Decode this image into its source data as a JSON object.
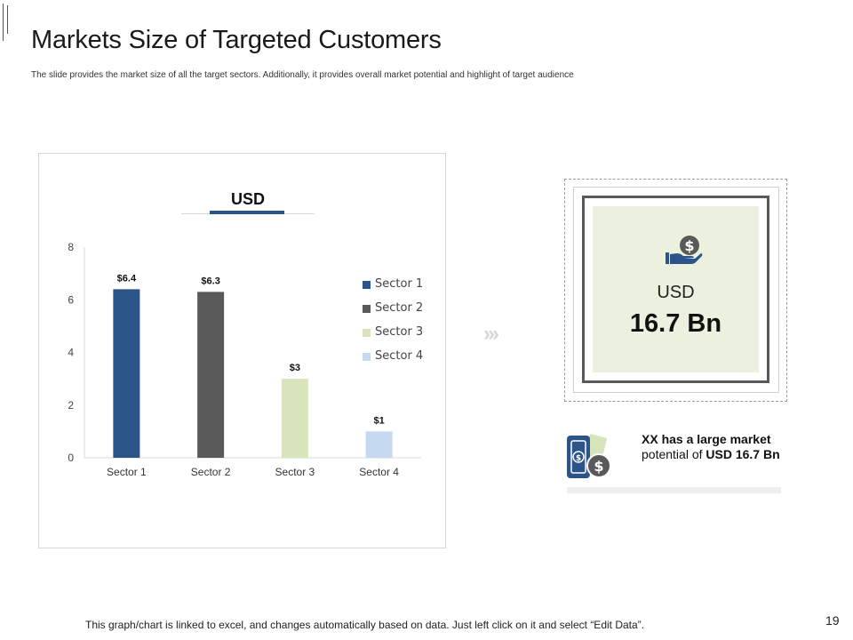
{
  "slide": {
    "title": "Markets Size of Targeted Customers",
    "subtitle": "The slide provides the market size of all the target sectors. Additionally, it provides overall market potential and highlight of target audience",
    "footer": "This graph/chart is linked to excel, and changes automatically based on data. Just left click on it and select “Edit Data”.",
    "page_number": "19"
  },
  "chart_data": {
    "type": "bar",
    "title": "USD",
    "categories": [
      "Sector 1",
      "Sector 2",
      "Sector 3",
      "Sector 4"
    ],
    "values": [
      6.4,
      6.3,
      3,
      1
    ],
    "data_labels": [
      "$6.4",
      "$6.3",
      "$3",
      "$1"
    ],
    "colors": [
      "#2b5489",
      "#595959",
      "#d8e4bc",
      "#c5d9f1"
    ],
    "ylim": [
      0,
      8
    ],
    "yticks": [
      0,
      2,
      4,
      6,
      8
    ],
    "legend": [
      "Sector 1",
      "Sector 2",
      "Sector 3",
      "Sector 4"
    ],
    "legend_position": "right",
    "grid": false,
    "xlabel": "",
    "ylabel": ""
  },
  "summary": {
    "icon": "money-hand-icon",
    "currency_label": "USD",
    "value": "16.7 Bn"
  },
  "note": {
    "icon": "money-bills-coins-icon",
    "lead": "XX has a large",
    "bold_word": "market",
    "middle": " potential of",
    "bold_value": "USD 16.7 Bn"
  }
}
